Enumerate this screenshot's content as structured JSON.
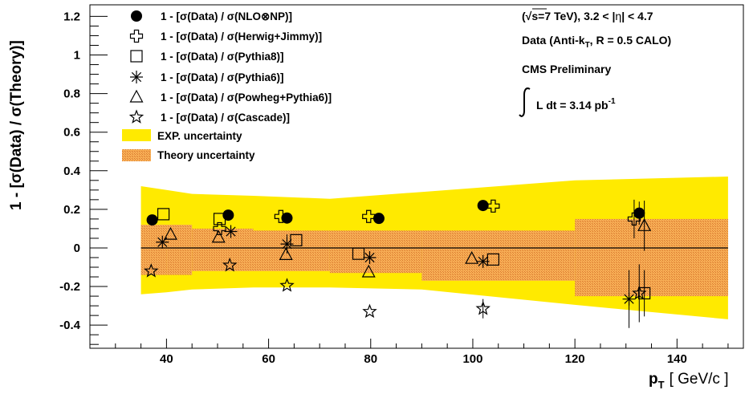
{
  "chart_data": {
    "type": "scatter",
    "xlabel": "p",
    "xlabel_sub": "T",
    "xlabel_unit": "[ GeV/c ]",
    "ylabel": "1 - [σ(Data) / σ(Theory)]",
    "xlim": [
      25,
      153
    ],
    "ylim": [
      -0.52,
      1.26
    ],
    "x_ticks": [
      40,
      60,
      80,
      100,
      120,
      140
    ],
    "y_ticks": [
      -0.4,
      -0.2,
      0,
      0.2,
      0.4,
      0.6,
      0.8,
      1,
      1.2
    ],
    "y_tick_labels": [
      "-0.4",
      "-0.2",
      "0",
      "0.2",
      "0.4",
      "0.6",
      "0.8",
      "1",
      "1.2"
    ],
    "legend_position": "top-left",
    "bins": [
      {
        "x": [
          35,
          40
        ],
        "exp": [
          -0.24,
          0.32
        ],
        "theory": [
          -0.14,
          0.12
        ]
      },
      {
        "x": [
          40,
          45
        ],
        "exp": [
          -0.22,
          0.28
        ],
        "theory": [
          -0.14,
          0.12
        ]
      },
      {
        "x": [
          45,
          57
        ],
        "exp": [
          -0.21,
          0.28
        ],
        "theory": [
          -0.12,
          0.1
        ]
      },
      {
        "x": [
          57,
          72
        ],
        "exp": [
          -0.2,
          0.26
        ],
        "theory": [
          -0.12,
          0.09
        ]
      },
      {
        "x": [
          72,
          90
        ],
        "exp": [
          -0.21,
          0.25
        ],
        "theory": [
          -0.13,
          0.09
        ]
      },
      {
        "x": [
          90,
          120
        ],
        "exp": [
          -0.22,
          0.33
        ],
        "theory": [
          -0.17,
          0.09
        ]
      },
      {
        "x": [
          120,
          150
        ],
        "exp": [
          -0.37,
          0.37
        ],
        "theory": [
          -0.25,
          0.15
        ]
      }
    ],
    "series": [
      {
        "name": "1 - [σ(Data) / σ(NLO⊗NP)]",
        "marker": "circle",
        "x": [
          37.2,
          52.1,
          63.6,
          81.6,
          102.0,
          132.6
        ],
        "y": [
          0.145,
          0.17,
          0.155,
          0.153,
          0.22,
          0.18
        ],
        "yerr": [
          0,
          0,
          0,
          0,
          0,
          0.06
        ]
      },
      {
        "name": "1 - [σ(Data) / σ(Herwig+Jimmy)]",
        "marker": "cross",
        "x": [
          50.4,
          62.4,
          79.6,
          104.0,
          131.6
        ],
        "y": [
          0.1,
          0.163,
          0.163,
          0.217,
          0.15
        ],
        "yerr": [
          0,
          0,
          0,
          0,
          0.1
        ]
      },
      {
        "name": "1 - [σ(Data) / σ(Pythia8)]",
        "marker": "square",
        "x": [
          39.4,
          50.4,
          65.4,
          77.6,
          104.0,
          133.6
        ],
        "y": [
          0.175,
          0.15,
          0.04,
          -0.03,
          -0.06,
          -0.235
        ],
        "yerr": [
          0,
          0,
          0,
          0,
          0,
          0.12
        ]
      },
      {
        "name": "1 - [σ(Data) / σ(Pythia6)]",
        "marker": "asterisk",
        "x": [
          39.2,
          52.6,
          63.6,
          79.8,
          102.0,
          130.6
        ],
        "y": [
          0.03,
          0.085,
          0.02,
          -0.05,
          -0.07,
          -0.265
        ],
        "yerr": [
          0,
          0,
          0.05,
          0,
          0,
          0.15
        ]
      },
      {
        "name": "1 - [σ(Data) / σ(Powheg+Pythia6)]",
        "marker": "triangle",
        "x": [
          40.8,
          50.2,
          63.4,
          79.6,
          99.8,
          133.6
        ],
        "y": [
          0.07,
          0.055,
          -0.035,
          -0.125,
          -0.055,
          0.115
        ],
        "yerr": [
          0,
          0,
          0,
          0,
          0,
          0.13
        ]
      },
      {
        "name": "1 - [σ(Data) / σ(Cascade)]",
        "marker": "star",
        "x": [
          37.0,
          52.4,
          63.6,
          79.8,
          102.0,
          132.6
        ],
        "y": [
          -0.12,
          -0.09,
          -0.195,
          -0.33,
          -0.315,
          -0.235
        ],
        "yerr": [
          0,
          0,
          0,
          0,
          0.05,
          0.15
        ]
      }
    ],
    "band_legend": [
      {
        "name": "EXP. uncertainty",
        "color": "#ffea00"
      },
      {
        "name": "Theory uncertainty",
        "color": "#f5a340"
      }
    ],
    "annotations": {
      "energy_a": "(",
      "energy_b": "s=7 TeV), 3.2 < |",
      "energy_eta": "η",
      "energy_c": "| < 4.7",
      "data_a": "Data (Anti-k",
      "data_sub": "T",
      "data_b": ", R = 0.5 CALO)",
      "cms": "CMS Preliminary",
      "lumi_a": "L dt = 3.14 pb",
      "lumi_sup": "-1"
    },
    "colors": {
      "exp_band": "#ffea00",
      "theory_band": "#f5a340",
      "theory_hatch": "#d9762e",
      "markers": "#000000"
    }
  }
}
